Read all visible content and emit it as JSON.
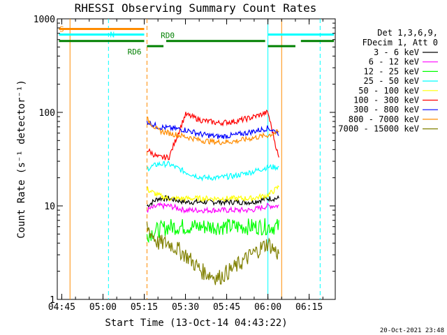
{
  "chart_data": {
    "type": "line",
    "title": "RHESSI Observing Summary Count Rates",
    "xlabel": "Start Time (13-Oct-14 04:43:22)",
    "ylabel": "Count Rate (s⁻¹ detector⁻¹)",
    "xlim": [
      "04:43:22",
      "06:24:30"
    ],
    "ylim": [
      1,
      1000
    ],
    "yscale": "log",
    "x_tick_labels": [
      "04:45",
      "05:00",
      "05:15",
      "05:30",
      "05:45",
      "06:00",
      "06:15"
    ],
    "y_tick_labels": [
      "1",
      "10",
      "100",
      "1000"
    ],
    "legend_title": [
      "Det 1,3,6,9,",
      "FDecim 1, Att 0"
    ],
    "legend_position": "right",
    "footer": "20-Oct-2021 23:48",
    "x_sample_times": [
      "05:16",
      "05:20",
      "05:24",
      "05:30",
      "05:36",
      "05:42",
      "05:48",
      "05:54",
      "06:00",
      "06:04"
    ],
    "series": [
      {
        "name": "3 - 6 keV",
        "color": "#000000",
        "values": [
          10,
          12,
          12,
          11,
          11,
          11,
          11,
          11,
          12,
          12
        ]
      },
      {
        "name": "6 - 12 keV",
        "color": "#ff00ff",
        "values": [
          9,
          10,
          10,
          9,
          9,
          9,
          9,
          9,
          10,
          10
        ]
      },
      {
        "name": "12 - 25 keV",
        "color": "#00ff00",
        "values": [
          5,
          5.5,
          6,
          6,
          6,
          6,
          6,
          6,
          6,
          6
        ]
      },
      {
        "name": "25 - 50 keV",
        "color": "#00ffff",
        "values": [
          25,
          28,
          28,
          23,
          20,
          20,
          21,
          23,
          26,
          26
        ]
      },
      {
        "name": "50 - 100 keV",
        "color": "#ffff00",
        "values": [
          15,
          13,
          12,
          12,
          12,
          12,
          12,
          12,
          13,
          16
        ]
      },
      {
        "name": "100 - 300 keV",
        "color": "#ff0000",
        "values": [
          40,
          33,
          33,
          95,
          82,
          77,
          80,
          88,
          100,
          32
        ]
      },
      {
        "name": "300 - 800 keV",
        "color": "#0000ff",
        "values": [
          80,
          70,
          68,
          65,
          58,
          55,
          57,
          62,
          68,
          60
        ]
      },
      {
        "name": "800 - 7000 keV",
        "color": "#ff8c00",
        "values": [
          85,
          64,
          60,
          55,
          50,
          48,
          49,
          53,
          57,
          62
        ]
      },
      {
        "name": "7000 - 15000 keV",
        "color": "#808000",
        "values": [
          6,
          4,
          4,
          3,
          2,
          1.7,
          2.2,
          3,
          4,
          3
        ]
      }
    ],
    "status_bars": [
      {
        "label": "S",
        "color": "#ff8c00",
        "y": 780,
        "segments": [
          [
            "04:44",
            "05:15"
          ]
        ]
      },
      {
        "label": "N",
        "color": "#00ffff",
        "y": 680,
        "segments": [
          [
            "04:44",
            "05:15"
          ],
          [
            "06:00",
            "06:24"
          ]
        ]
      },
      {
        "label": "RD0",
        "color": "#008000",
        "y": 580,
        "segments": [
          [
            "04:44",
            "05:15"
          ],
          [
            "05:23",
            "05:59"
          ],
          [
            "06:12",
            "06:24"
          ]
        ]
      },
      {
        "label": "RD6",
        "color": "#008000",
        "y": 510,
        "segments": [
          [
            "05:16",
            "05:22"
          ],
          [
            "06:00",
            "06:10"
          ]
        ]
      }
    ],
    "vertical_markers": [
      {
        "time": "04:48",
        "color": "#ff8c00",
        "style": "solid"
      },
      {
        "time": "05:02",
        "color": "#00ffff",
        "style": "dashed"
      },
      {
        "time": "05:16",
        "color": "#ff8c00",
        "style": "dashed"
      },
      {
        "time": "06:00",
        "color": "#00ffff",
        "style": "solid"
      },
      {
        "time": "06:05",
        "color": "#ff8c00",
        "style": "solid"
      },
      {
        "time": "06:19",
        "color": "#00ffff",
        "style": "dashed"
      }
    ],
    "grid": false
  }
}
